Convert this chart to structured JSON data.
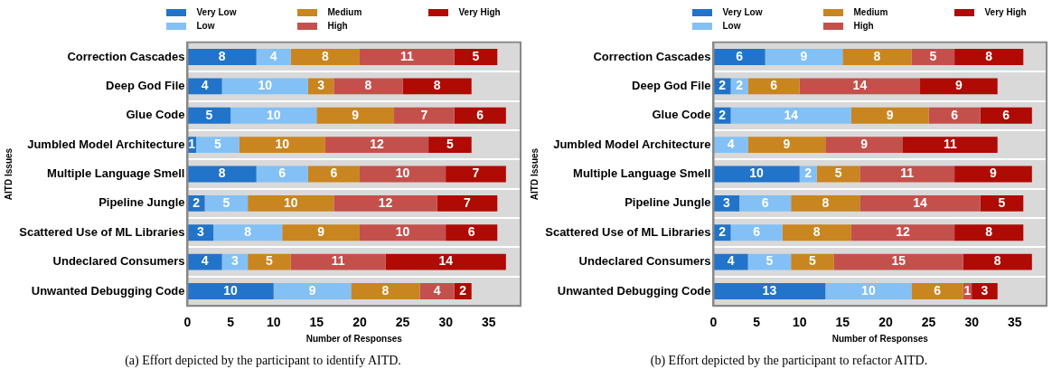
{
  "chart_data": [
    {
      "type": "bar",
      "orientation": "horizontal",
      "stacked": true,
      "ylabel": "AITD Issues",
      "xlabel": "Number of Responses",
      "categories": [
        "Correction Cascades",
        "Deep God File",
        "Glue Code",
        "Jumbled Model Architecture",
        "Multiple Language Smell",
        "Pipeline Jungle",
        "Scattered Use of ML Libraries",
        "Undeclared Consumers",
        "Unwanted Debugging Code"
      ],
      "series": [
        {
          "name": "Very Low",
          "color": "#2174c9",
          "values": [
            8,
            4,
            5,
            1,
            8,
            2,
            3,
            4,
            10
          ]
        },
        {
          "name": "Low",
          "color": "#83c0f6",
          "values": [
            4,
            10,
            10,
            5,
            6,
            5,
            8,
            3,
            9
          ]
        },
        {
          "name": "Medium",
          "color": "#c9851f",
          "values": [
            8,
            3,
            9,
            10,
            6,
            10,
            9,
            5,
            8
          ]
        },
        {
          "name": "High",
          "color": "#c4504c",
          "values": [
            11,
            8,
            7,
            12,
            10,
            12,
            10,
            11,
            4
          ]
        },
        {
          "name": "Very High",
          "color": "#af0a04",
          "values": [
            5,
            8,
            6,
            5,
            7,
            7,
            6,
            14,
            2
          ]
        }
      ],
      "xlim": [
        0,
        38.7
      ],
      "xticks": [
        0,
        5,
        10,
        15,
        20,
        25,
        30,
        35
      ],
      "grid": "y",
      "legend": "top",
      "data_labels": true,
      "annotations": [
        "(a) Effort depicted by the participant to identify AITD."
      ]
    },
    {
      "type": "bar",
      "orientation": "horizontal",
      "stacked": true,
      "ylabel": "AITD Issues",
      "xlabel": "Number of Responses",
      "categories": [
        "Correction Cascades",
        "Deep God File",
        "Glue Code",
        "Jumbled Model Architecture",
        "Multiple Language Smell",
        "Pipeline Jungle",
        "Scattered Use of ML Libraries",
        "Undeclared Consumers",
        "Unwanted Debugging Code"
      ],
      "series": [
        {
          "name": "Very Low",
          "color": "#2174c9",
          "values": [
            6,
            2,
            2,
            0,
            10,
            3,
            2,
            4,
            13
          ]
        },
        {
          "name": "Low",
          "color": "#83c0f6",
          "values": [
            9,
            2,
            14,
            4,
            2,
            6,
            6,
            5,
            10
          ]
        },
        {
          "name": "Medium",
          "color": "#c9851f",
          "values": [
            8,
            6,
            9,
            9,
            5,
            8,
            8,
            5,
            6
          ]
        },
        {
          "name": "High",
          "color": "#c4504c",
          "values": [
            5,
            14,
            6,
            9,
            11,
            14,
            12,
            15,
            1
          ]
        },
        {
          "name": "Very High",
          "color": "#af0a04",
          "values": [
            8,
            9,
            6,
            11,
            9,
            5,
            8,
            8,
            3
          ]
        }
      ],
      "value_labels": [
        [
          "6",
          "2",
          "2",
          null,
          "10",
          "3",
          "2",
          "4",
          "13"
        ],
        [
          "9",
          "2",
          "14",
          "4",
          "2",
          "6",
          "6",
          "5",
          "10"
        ],
        [
          "8",
          "6",
          "9",
          "9",
          "5",
          "8",
          "8",
          "5",
          "6"
        ],
        [
          "5",
          "14",
          "6",
          "9",
          "11",
          "14",
          "12",
          "15",
          "1"
        ],
        [
          "8",
          "9",
          "6",
          "11",
          "9",
          "5",
          "8",
          "8",
          "3"
        ]
      ],
      "xlim": [
        0,
        38.7
      ],
      "xticks": [
        0,
        5,
        10,
        15,
        20,
        25,
        30,
        35
      ],
      "grid": "y",
      "legend": "top",
      "annotations": [
        "(b) Effort depicted by the participant to refactor AITD."
      ]
    }
  ]
}
